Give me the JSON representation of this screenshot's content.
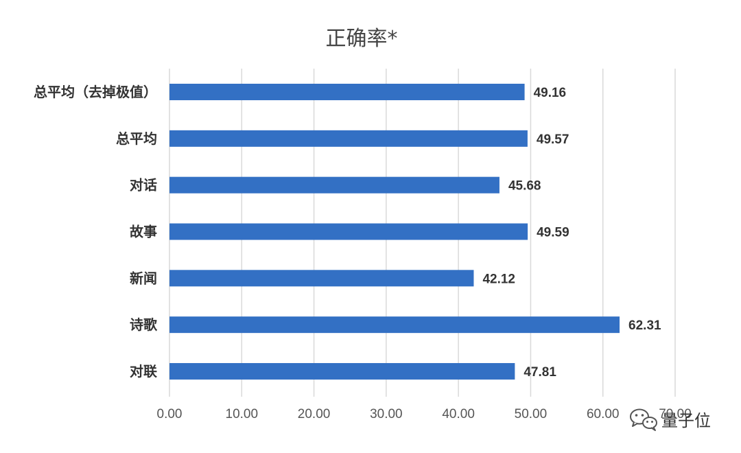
{
  "chart_data": {
    "type": "bar",
    "orientation": "horizontal",
    "title": "正确率*",
    "categories": [
      "总平均（去掉极值）",
      "总平均",
      "对话",
      "故事",
      "新闻",
      "诗歌",
      "对联"
    ],
    "values": [
      49.16,
      49.57,
      45.68,
      49.59,
      42.12,
      62.31,
      47.81
    ],
    "value_labels": [
      "49.16",
      "49.57",
      "45.68",
      "49.59",
      "42.12",
      "62.31",
      "47.81"
    ],
    "xlim": [
      0,
      70
    ],
    "x_ticks": [
      0,
      10,
      20,
      30,
      40,
      50,
      60,
      70
    ],
    "x_tick_labels": [
      "0.00",
      "10.00",
      "20.00",
      "30.00",
      "40.00",
      "50.00",
      "60.00",
      "70.00"
    ],
    "grid": "vertical",
    "legend": "none",
    "bar_color": "#3370c4"
  },
  "watermark": {
    "text": "量子位",
    "icon": "wechat-icon"
  }
}
